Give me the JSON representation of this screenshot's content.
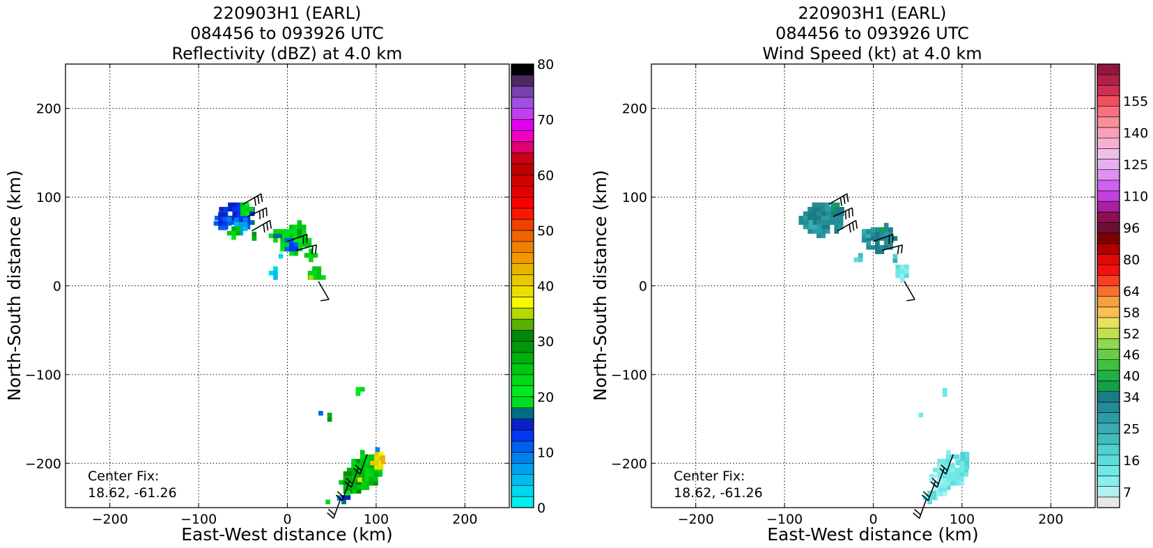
{
  "chart_data": [
    {
      "type": "heatmap",
      "title_lines": [
        "220903H1 (EARL)",
        "084456 to 093926 UTC",
        "Reflectivity (dBZ) at 4.0 km"
      ],
      "xlabel": "East-West distance (km)",
      "ylabel": "North-South distance (km)",
      "xlim": [
        -250,
        250
      ],
      "ylim": [
        -250,
        250
      ],
      "xticks": [
        -200,
        -100,
        0,
        100,
        200
      ],
      "yticks": [
        -200,
        -100,
        0,
        100,
        200
      ],
      "xtick_labels": [
        "−200",
        "−100",
        "0",
        "100",
        "200"
      ],
      "ytick_labels": [
        "−200",
        "−100",
        "0",
        "100",
        "200"
      ],
      "grid": true,
      "annotation": [
        "Center Fix:",
        "18.62, -61.26"
      ],
      "colorbar": {
        "min": 0,
        "max": 80,
        "ticks": [
          0,
          10,
          20,
          30,
          40,
          50,
          60,
          70,
          80
        ],
        "tick_labels": [
          "0",
          "10",
          "20",
          "30",
          "40",
          "50",
          "60",
          "70",
          "80"
        ],
        "colors": [
          "#00eeee",
          "#00d8ee",
          "#00bcee",
          "#00a0ee",
          "#0080ee",
          "#0060ee",
          "#0038ee",
          "#0a20c8",
          "#006e80",
          "#00dd22",
          "#00e81e",
          "#00d818",
          "#00c812",
          "#00b00e",
          "#00980a",
          "#008806",
          "#5ab000",
          "#b4d800",
          "#f8f800",
          "#eae000",
          "#e8c800",
          "#e8b400",
          "#f09800",
          "#f08000",
          "#f06400",
          "#f04000",
          "#f81800",
          "#f80000",
          "#e80000",
          "#d00000",
          "#c00000",
          "#c80018",
          "#e00070",
          "#f000c0",
          "#e000f0",
          "#c040f0",
          "#a050e0",
          "#7a40b0",
          "#4a2a60",
          "#000000"
        ]
      },
      "echo_regions": [
        {
          "cx": -60,
          "cy": 75,
          "rx": 22,
          "ry": 16,
          "value": 14
        },
        {
          "cx": -55,
          "cy": 65,
          "rx": 10,
          "ry": 8,
          "value": 8
        },
        {
          "cx": -75,
          "cy": 70,
          "rx": 8,
          "ry": 12,
          "value": 12
        },
        {
          "cx": -50,
          "cy": 82,
          "rx": 8,
          "ry": 8,
          "value": 24
        },
        {
          "cx": -62,
          "cy": 58,
          "rx": 6,
          "ry": 6,
          "value": 24
        },
        {
          "cx": -40,
          "cy": 55,
          "rx": 5,
          "ry": 4,
          "value": 26
        },
        {
          "cx": 5,
          "cy": 50,
          "rx": 18,
          "ry": 16,
          "value": 22
        },
        {
          "cx": 0,
          "cy": 42,
          "rx": 8,
          "ry": 8,
          "value": 12
        },
        {
          "cx": 12,
          "cy": 62,
          "rx": 6,
          "ry": 8,
          "value": 26
        },
        {
          "cx": -15,
          "cy": 55,
          "rx": 6,
          "ry": 6,
          "value": 20
        },
        {
          "cx": 25,
          "cy": 32,
          "rx": 6,
          "ry": 5,
          "value": 22
        },
        {
          "cx": 30,
          "cy": 10,
          "rx": 12,
          "ry": 8,
          "value": 24
        },
        {
          "cx": 23,
          "cy": 6,
          "rx": 4,
          "ry": 4,
          "value": 36
        },
        {
          "cx": -17,
          "cy": 12,
          "rx": 4,
          "ry": 10,
          "value": 4
        },
        {
          "cx": -12,
          "cy": 30,
          "rx": 3,
          "ry": 4,
          "value": 4
        },
        {
          "cx": 78,
          "cy": -120,
          "rx": 6,
          "ry": 4,
          "value": 24
        },
        {
          "cx": 45,
          "cy": -150,
          "rx": 5,
          "ry": 3,
          "value": 26
        },
        {
          "cx": 33,
          "cy": -148,
          "rx": 3,
          "ry": 3,
          "value": 12
        },
        {
          "cx": 92,
          "cy": -152,
          "rx": 2,
          "ry": 4,
          "value": 22
        },
        {
          "cx": 92,
          "cy": -133,
          "rx": 2,
          "ry": 2,
          "value": 24
        },
        {
          "cx": 60,
          "cy": -135,
          "rx": 2,
          "ry": 2,
          "value": 8
        },
        {
          "cx": 85,
          "cy": -210,
          "rx": 18,
          "ry": 20,
          "value": 26
        },
        {
          "cx": 100,
          "cy": -200,
          "rx": 7,
          "ry": 12,
          "value": 38
        },
        {
          "cx": 103,
          "cy": -200,
          "rx": 3,
          "ry": 6,
          "value": 44
        },
        {
          "cx": 70,
          "cy": -225,
          "rx": 12,
          "ry": 14,
          "value": 28
        },
        {
          "cx": 78,
          "cy": -222,
          "rx": 4,
          "ry": 4,
          "value": 40
        },
        {
          "cx": 62,
          "cy": -240,
          "rx": 6,
          "ry": 6,
          "value": 18
        },
        {
          "cx": 55,
          "cy": -243,
          "rx": 4,
          "ry": 4,
          "value": 10
        },
        {
          "cx": 98,
          "cy": -188,
          "rx": 4,
          "ry": 4,
          "value": 10
        },
        {
          "cx": 40,
          "cy": -200,
          "rx": 2,
          "ry": 2,
          "value": 24
        },
        {
          "cx": 42,
          "cy": -248,
          "rx": 4,
          "ry": 3,
          "value": 24
        }
      ]
    },
    {
      "type": "heatmap",
      "title_lines": [
        "220903H1 (EARL)",
        "084456 to 093926 UTC",
        "Wind Speed (kt) at 4.0 km"
      ],
      "xlabel": "East-West distance (km)",
      "ylabel": "North-South distance (km)",
      "xlim": [
        -250,
        250
      ],
      "ylim": [
        -250,
        250
      ],
      "xticks": [
        -200,
        -100,
        0,
        100,
        200
      ],
      "yticks": [
        -200,
        -100,
        0,
        100,
        200
      ],
      "xtick_labels": [
        "−200",
        "−100",
        "0",
        "100",
        "200"
      ],
      "ytick_labels": [
        "−200",
        "−100",
        "0",
        "100",
        "200"
      ],
      "grid": true,
      "annotation": [
        "Center Fix:",
        "18.62, -61.26"
      ],
      "colorbar": {
        "levels": 40,
        "tick_labels": [
          "7",
          "16",
          "25",
          "34",
          "40",
          "46",
          "52",
          "58",
          "64",
          "80",
          "96",
          "110",
          "125",
          "140",
          "155"
        ],
        "tick_levels": [
          1,
          4,
          7,
          10,
          12,
          14,
          16,
          18,
          20,
          23,
          26,
          29,
          32,
          35,
          38
        ],
        "colors": [
          "#e8e8e8",
          "#b0f0f0",
          "#88eeee",
          "#70e8e8",
          "#5edcdc",
          "#50d0d0",
          "#40bcbc",
          "#38acb0",
          "#2c9ca4",
          "#248c96",
          "#1a7c88",
          "#12a048",
          "#20b048",
          "#40c040",
          "#68cc48",
          "#90d850",
          "#c0e050",
          "#e8e060",
          "#f8c050",
          "#f8a040",
          "#f87030",
          "#f84020",
          "#f81010",
          "#e00808",
          "#b00000",
          "#800000",
          "#6a1030",
          "#8a1050",
          "#a820a0",
          "#c040e0",
          "#d060f0",
          "#e090f0",
          "#e8b0f0",
          "#f0c0e8",
          "#f8b0d0",
          "#f8a0b8",
          "#f89098",
          "#f87080",
          "#f05060",
          "#d03050",
          "#b02048",
          "#901840"
        ]
      },
      "echo_regions": [
        {
          "cx": -60,
          "cy": 72,
          "rx": 24,
          "ry": 18,
          "value": 9
        },
        {
          "cx": -45,
          "cy": 82,
          "rx": 8,
          "ry": 8,
          "value": 10
        },
        {
          "cx": -70,
          "cy": 62,
          "rx": 8,
          "ry": 8,
          "value": 8
        },
        {
          "cx": 5,
          "cy": 50,
          "rx": 18,
          "ry": 14,
          "value": 9
        },
        {
          "cx": -12,
          "cy": 55,
          "rx": 6,
          "ry": 6,
          "value": 8
        },
        {
          "cx": 12,
          "cy": 62,
          "rx": 5,
          "ry": 6,
          "value": 10
        },
        {
          "cx": -18,
          "cy": 28,
          "rx": 4,
          "ry": 6,
          "value": 5
        },
        {
          "cx": 30,
          "cy": 12,
          "rx": 10,
          "ry": 8,
          "value": 3
        },
        {
          "cx": 22,
          "cy": 30,
          "rx": 5,
          "ry": 4,
          "value": 6
        },
        {
          "cx": 78,
          "cy": -122,
          "rx": 5,
          "ry": 3,
          "value": 3
        },
        {
          "cx": 50,
          "cy": -150,
          "rx": 4,
          "ry": 3,
          "value": 3
        },
        {
          "cx": 30,
          "cy": -150,
          "rx": 2,
          "ry": 2,
          "value": 3
        },
        {
          "cx": 85,
          "cy": -210,
          "rx": 18,
          "ry": 20,
          "value": 3
        },
        {
          "cx": 100,
          "cy": -200,
          "rx": 7,
          "ry": 12,
          "value": 4
        },
        {
          "cx": 70,
          "cy": -228,
          "rx": 12,
          "ry": 14,
          "value": 2
        },
        {
          "cx": 62,
          "cy": -240,
          "rx": 6,
          "ry": 6,
          "value": 3
        },
        {
          "cx": 48,
          "cy": -200,
          "rx": 2,
          "ry": 2,
          "value": 2
        }
      ]
    }
  ],
  "wind_barbs": [
    {
      "x": -50,
      "y": 92,
      "dir": 60,
      "barbs": 3
    },
    {
      "x": -45,
      "y": 78,
      "dir": 65,
      "barbs": 3
    },
    {
      "x": -40,
      "y": 62,
      "dir": 60,
      "barbs": 3
    },
    {
      "x": 0,
      "y": 50,
      "dir": 70,
      "barbs": 2
    },
    {
      "x": 10,
      "y": 40,
      "dir": 75,
      "barbs": 2
    },
    {
      "x": 35,
      "y": 5,
      "dir": 150,
      "barbs": 1
    },
    {
      "x": 60,
      "y": -240,
      "dir": 200,
      "barbs": 2
    },
    {
      "x": 70,
      "y": -220,
      "dir": 200,
      "barbs": 2
    },
    {
      "x": 80,
      "y": -205,
      "dir": 200,
      "barbs": 2
    },
    {
      "x": 90,
      "y": -190,
      "dir": 200,
      "barbs": 2
    }
  ]
}
